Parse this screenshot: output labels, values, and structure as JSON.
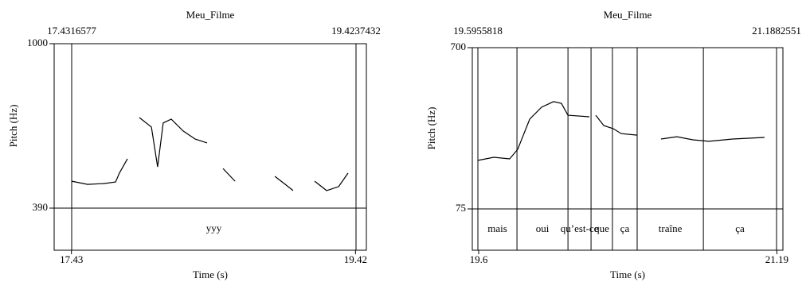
{
  "chart_data": [
    {
      "type": "line",
      "title": "Meu_Filme",
      "xlabel": "Time (s)",
      "ylabel": "Pitch (Hz)",
      "xlim": [
        17.4316577,
        19.4237432
      ],
      "xticks": [
        17.43,
        19.42
      ],
      "ylim": [
        390,
        1000
      ],
      "yticks": [
        390,
        1000
      ],
      "color": "#000000",
      "x": [
        17.432,
        17.543,
        17.655,
        17.739,
        17.766,
        17.822,
        null,
        17.906,
        17.99,
        18.034,
        18.073,
        18.129,
        18.213,
        18.297,
        18.38,
        null,
        18.492,
        18.576,
        null,
        18.855,
        18.928,
        18.983,
        null,
        19.134,
        19.218,
        19.302,
        19.368
      ],
      "values": [
        490,
        478,
        481,
        487,
        520,
        573,
        null,
        726,
        691,
        543,
        706,
        720,
        676,
        646,
        632,
        null,
        537,
        490,
        null,
        508,
        478,
        455,
        null,
        490,
        455,
        470,
        520
      ],
      "tier": {
        "boundaries": [],
        "labels": [
          "yyy"
        ]
      }
    },
    {
      "type": "line",
      "title": "Meu_Filme",
      "xlabel": "Time (s)",
      "ylabel": "Pitch (Hz)",
      "xlim": [
        19.5955818,
        21.1882551
      ],
      "xticks": [
        19.6,
        21.19
      ],
      "ylim": [
        75,
        700
      ],
      "yticks": [
        75,
        700
      ],
      "color": "#000000",
      "x": [
        19.596,
        19.681,
        19.765,
        19.808,
        19.872,
        19.935,
        19.999,
        20.041,
        20.076,
        20.19,
        null,
        20.224,
        20.267,
        20.318,
        20.36,
        20.445,
        null,
        20.572,
        20.657,
        20.742,
        20.827,
        20.955,
        21.124
      ],
      "values": [
        263,
        275,
        269,
        306,
        423,
        469,
        491,
        484,
        438,
        432,
        null,
        438,
        398,
        386,
        367,
        361,
        null,
        346,
        355,
        343,
        337,
        346,
        352
      ],
      "tier": {
        "boundaries": [
          19.804,
          20.076,
          20.199,
          20.313,
          20.445,
          20.798
        ],
        "labels": [
          "mais",
          "oui",
          "qu’est-ce",
          "que",
          "ça",
          "traîne",
          "ça"
        ]
      }
    }
  ]
}
